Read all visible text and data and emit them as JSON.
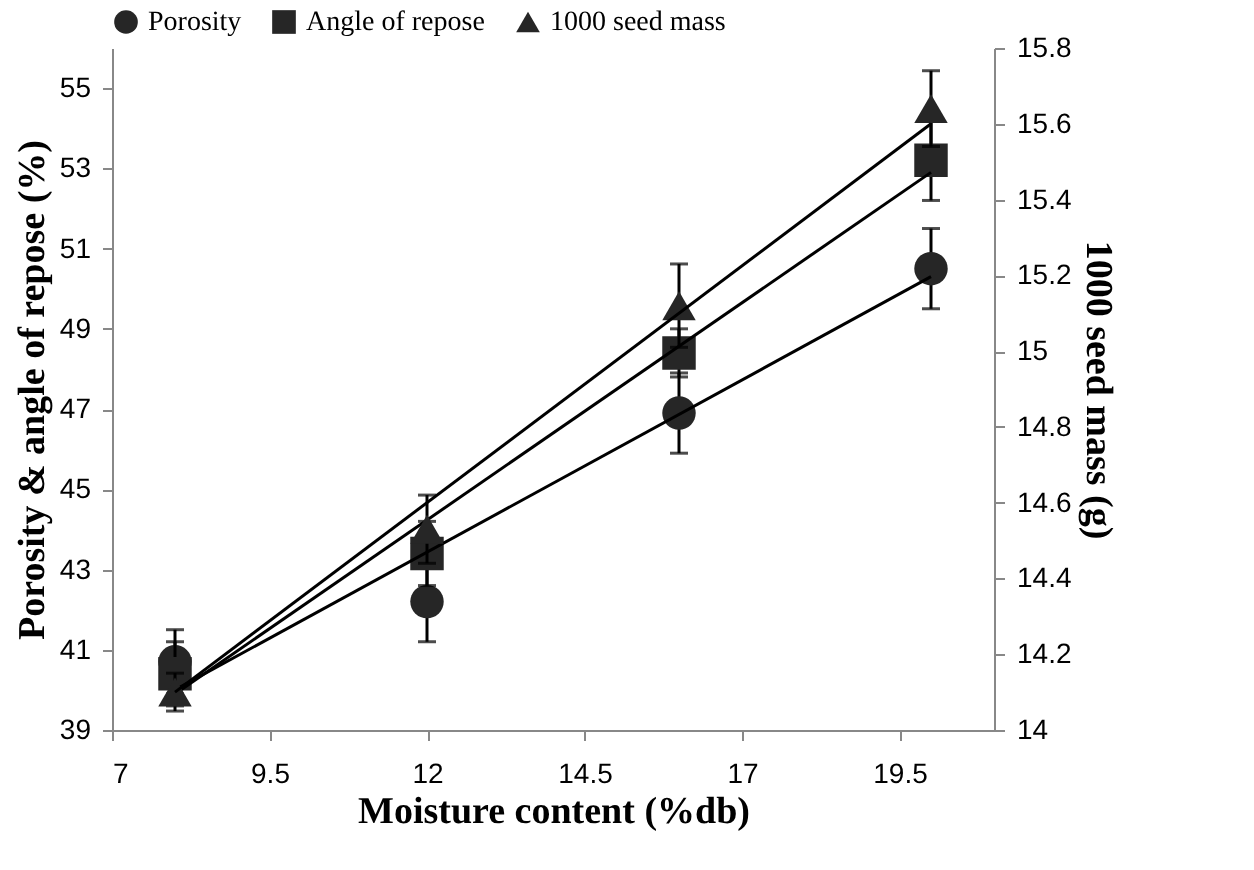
{
  "chart_data": {
    "type": "scatter",
    "xlabel": "Moisture content (%db)",
    "ylabel": "Porosity & angle of repose (%)",
    "y2label": "1000 seed mass (g)",
    "xlim": [
      7,
      21
    ],
    "xticks": [
      7,
      9.5,
      12,
      14.5,
      17,
      19.5
    ],
    "ylim": [
      39,
      56
    ],
    "yticks": [
      39,
      41,
      43,
      45,
      47,
      49,
      51,
      53,
      55
    ],
    "y2lim": [
      14,
      15.8
    ],
    "y2ticks": [
      14,
      14.2,
      14.4,
      14.6,
      14.8,
      15,
      15.2,
      15.4,
      15.6,
      15.8
    ],
    "grid": false,
    "legend": "top",
    "series": [
      {
        "name": "Porosity",
        "marker": "circle",
        "color": "#262626",
        "x": [
          8,
          12,
          16,
          20
        ],
        "values": [
          40.7,
          42.2,
          46.9,
          50.5
        ],
        "errors": [
          0.8,
          1,
          1,
          1
        ]
      },
      {
        "name": "Angle of repose",
        "marker": "square",
        "color": "#262626",
        "x": [
          8,
          12,
          16,
          20
        ],
        "values": [
          40.4,
          43.4,
          48.4,
          53.2
        ],
        "errors": [
          0.8,
          0.8,
          0.6,
          1
        ]
      },
      {
        "name": "1000 seed mass",
        "marker": "triangle",
        "color": "#262626",
        "axis": "y2",
        "x": [
          8,
          12,
          16,
          20
        ],
        "values": [
          14.1,
          14.53,
          15.12,
          15.64
        ],
        "errors": [
          0.05,
          0.09,
          0.11,
          0.1
        ]
      },
      {
        "type": "line",
        "color": "#000000",
        "x": [
          8,
          20
        ],
        "values": [
          40.0,
          50.3
        ]
      },
      {
        "type": "line",
        "color": "#000000",
        "x": [
          8,
          20
        ],
        "values": [
          39.9,
          52.9
        ]
      },
      {
        "type": "line",
        "color": "#000000",
        "axis": "y2",
        "x": [
          8,
          20
        ],
        "values": [
          14.1,
          15.6
        ]
      }
    ]
  }
}
